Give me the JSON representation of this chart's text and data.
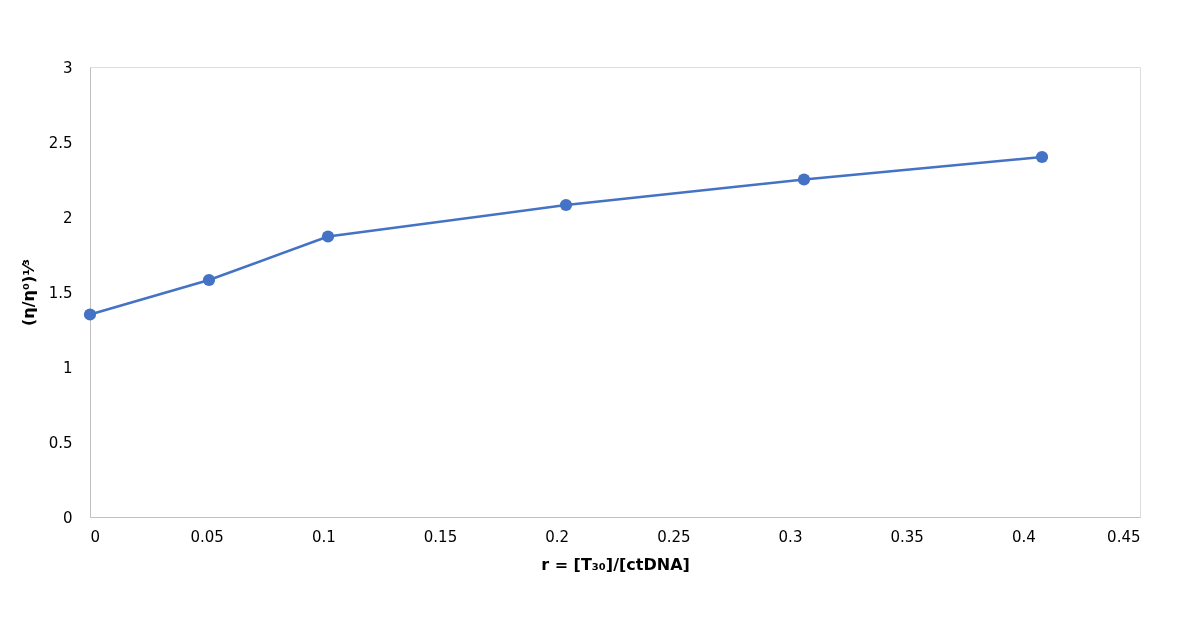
{
  "chart_data": {
    "type": "line",
    "xlabel": "r = [T₃₀]/[ctDNA]",
    "ylabel": "(η/η⁰)¹⁄³",
    "x": [
      0,
      0.051,
      0.102,
      0.204,
      0.306,
      0.408
    ],
    "series": [
      {
        "color": "#4472c4",
        "values": [
          1.35,
          1.58,
          1.87,
          2.08,
          2.25,
          2.4
        ]
      }
    ],
    "xlim": [
      0,
      0.45
    ],
    "xticks": [
      0,
      0.05,
      0.1,
      0.15,
      0.2,
      0.25,
      0.3,
      0.35,
      0.4,
      0.45
    ],
    "ylim": [
      0,
      3
    ],
    "yticks": [
      0,
      0.5,
      1,
      1.5,
      2,
      2.5,
      3
    ],
    "grid": false,
    "legend": false,
    "marker": "circle",
    "line_style": "solid"
  }
}
